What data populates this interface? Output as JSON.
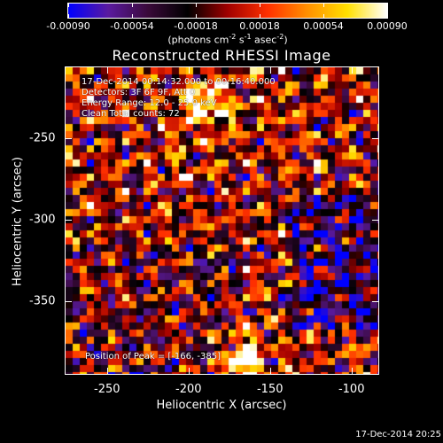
{
  "colorbar": {
    "tick_labels": [
      "-0.00090",
      "-0.00054",
      "-0.00018",
      "0.00018",
      "0.00054",
      "0.00090"
    ],
    "units_text": "(photons cm",
    "units_exp1": "-2",
    "units_mid": " s",
    "units_exp2": "-1",
    "units_mid2": " asec",
    "units_exp3": "-2",
    "units_close": ")"
  },
  "title": "Reconstructed RHESSI Image",
  "info": {
    "time_range": "17-Dec-2014 00:14:32.000 to 00:16:40.000",
    "detectors": "Detectors: 3F 6F 9F, Att 0",
    "energy": "Energy Range: 12.0 - 25.0 keV",
    "clean": "Clean     Total counts: 72",
    "peak": "Position of Peak = [-166, -385]"
  },
  "chart_data": {
    "type": "heatmap",
    "title": "Reconstructed RHESSI Image",
    "xlabel": "Heliocentric X (arcsec)",
    "ylabel": "Heliocentric Y (arcsec)",
    "xlim": [
      -276,
      -83
    ],
    "ylim": [
      -395,
      -206
    ],
    "x_ticks": [
      -250,
      -200,
      -150,
      -100
    ],
    "y_ticks": [
      -250,
      -300,
      -350
    ],
    "x_tick_labels": [
      "-250",
      "-200",
      "-150",
      "-100"
    ],
    "y_tick_labels": [
      "-250",
      "-300",
      "-350"
    ],
    "color_range": [
      -0.0009,
      0.0009
    ],
    "colormap": "blue-purple-red-yellow-white",
    "peak_position": [
      -166,
      -385
    ]
  },
  "colors": {
    "colormap_stops": [
      "#0000ff",
      "#5a1aa0",
      "#3a0a3a",
      "#000000",
      "#a00000",
      "#ff3000",
      "#ff9000",
      "#ffe000",
      "#ffffff"
    ]
  },
  "datestamp": "17-Dec-2014 20:25"
}
